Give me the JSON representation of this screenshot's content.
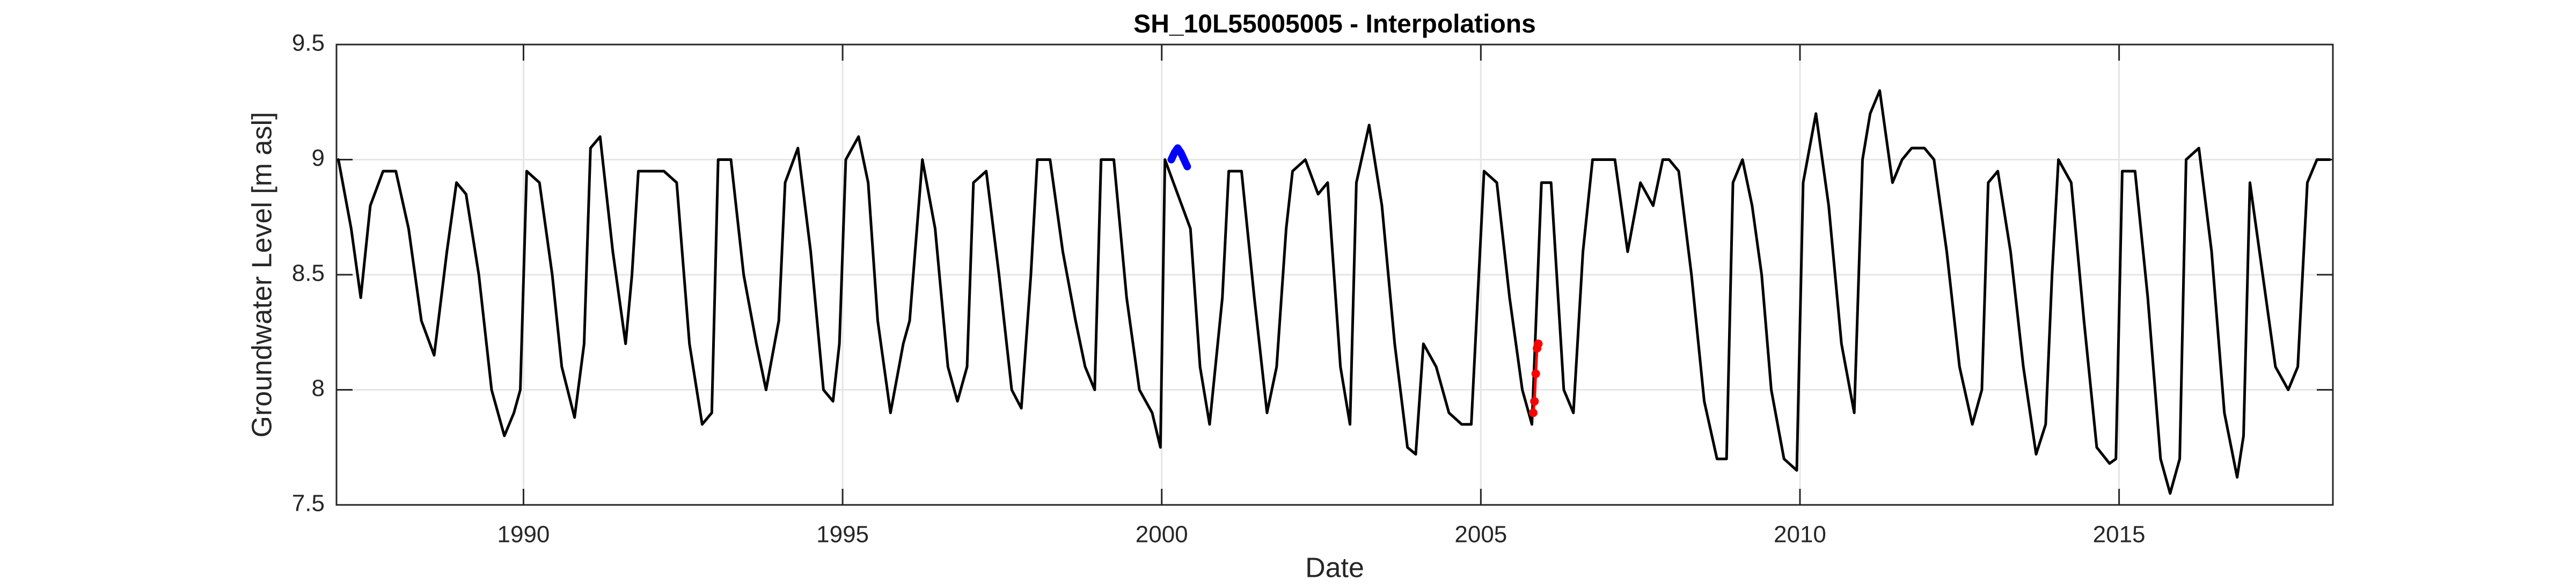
{
  "chart_data": {
    "type": "line",
    "title": "SH_10L55005005 - Interpolations",
    "xlabel": "Date",
    "ylabel": "Groundwater Level [m asl]",
    "xlim": [
      1987.07,
      2018.35
    ],
    "ylim": [
      7.5,
      9.5
    ],
    "xticks": [
      1990,
      1995,
      2000,
      2005,
      2010,
      2015
    ],
    "yticks": [
      7.5,
      8,
      8.5,
      9,
      9.5
    ],
    "grid": true,
    "series": [
      {
        "color": "#000000",
        "x": [
          1987.1,
          1987.3,
          1987.45,
          1987.6,
          1987.8,
          1988.0,
          1988.2,
          1988.4,
          1988.6,
          1988.8,
          1988.95,
          1989.1,
          1989.3,
          1989.5,
          1989.7,
          1989.85,
          1989.95,
          1990.05,
          1990.25,
          1990.45,
          1990.6,
          1990.8,
          1990.95,
          1991.05,
          1991.2,
          1991.4,
          1991.6,
          1991.7,
          1991.8,
          1992.0,
          1992.2,
          1992.4,
          1992.6,
          1992.8,
          1992.95,
          1993.05,
          1993.25,
          1993.45,
          1993.65,
          1993.8,
          1994.0,
          1994.1,
          1994.3,
          1994.5,
          1994.7,
          1994.85,
          1994.95,
          1995.05,
          1995.25,
          1995.4,
          1995.55,
          1995.75,
          1995.95,
          1996.05,
          1996.25,
          1996.45,
          1996.65,
          1996.8,
          1996.95,
          1997.05,
          1997.25,
          1997.45,
          1997.65,
          1997.8,
          1997.95,
          1998.05,
          1998.25,
          1998.45,
          1998.65,
          1998.8,
          1998.95,
          1999.05,
          1999.25,
          1999.45,
          1999.65,
          1999.85,
          1999.98,
          2000.05,
          2000.45,
          2000.6,
          2000.75,
          2000.95,
          2001.05,
          2001.25,
          2001.45,
          2001.65,
          2001.8,
          2001.95,
          2002.05,
          2002.25,
          2002.45,
          2002.6,
          2002.8,
          2002.95,
          2003.05,
          2003.25,
          2003.45,
          2003.65,
          2003.85,
          2003.98,
          2004.1,
          2004.3,
          2004.5,
          2004.7,
          2004.85,
          2004.95,
          2005.05,
          2005.25,
          2005.45,
          2005.65,
          2005.8,
          2005.95,
          2006.1,
          2006.3,
          2006.45,
          2006.6,
          2006.75,
          2006.95,
          2007.1,
          2007.3,
          2007.5,
          2007.7,
          2007.85,
          2007.95,
          2008.1,
          2008.3,
          2008.5,
          2008.7,
          2008.85,
          2008.95,
          2009.1,
          2009.25,
          2009.4,
          2009.55,
          2009.75,
          2009.95,
          2010.05,
          2010.25,
          2010.45,
          2010.65,
          2010.85,
          2010.98,
          2011.1,
          2011.25,
          2011.45,
          2011.6,
          2011.75,
          2011.95,
          2012.1,
          2012.3,
          2012.5,
          2012.7,
          2012.85,
          2012.95,
          2013.1,
          2013.3,
          2013.5,
          2013.7,
          2013.85,
          2013.95,
          2014.05,
          2014.25,
          2014.45,
          2014.65,
          2014.85,
          2014.95,
          2015.05,
          2015.25,
          2015.45,
          2015.65,
          2015.8,
          2015.95,
          2016.05,
          2016.25,
          2016.45,
          2016.65,
          2016.85,
          2016.95,
          2017.05,
          2017.25,
          2017.45,
          2017.65,
          2017.8,
          2017.95,
          2018.1,
          2018.3
        ],
        "values": [
          9.0,
          8.7,
          8.4,
          8.8,
          8.95,
          8.95,
          8.7,
          8.3,
          8.15,
          8.6,
          8.9,
          8.85,
          8.5,
          8.0,
          7.8,
          7.9,
          8.0,
          8.95,
          8.9,
          8.5,
          8.1,
          7.88,
          8.2,
          9.05,
          9.1,
          8.6,
          8.2,
          8.5,
          8.95,
          8.95,
          8.95,
          8.9,
          8.2,
          7.85,
          7.9,
          9.0,
          9.0,
          8.5,
          8.2,
          8.0,
          8.3,
          8.9,
          9.05,
          8.6,
          8.0,
          7.95,
          8.2,
          9.0,
          9.1,
          8.9,
          8.3,
          7.9,
          8.2,
          8.3,
          9.0,
          8.7,
          8.1,
          7.95,
          8.1,
          8.9,
          8.95,
          8.5,
          8.0,
          7.92,
          8.5,
          9.0,
          9.0,
          8.6,
          8.3,
          8.1,
          8.0,
          9.0,
          9.0,
          8.4,
          8.0,
          7.9,
          7.75,
          9.0,
          8.7,
          8.1,
          7.85,
          8.4,
          8.95,
          8.95,
          8.4,
          7.9,
          8.1,
          8.7,
          8.95,
          9.0,
          8.85,
          8.9,
          8.1,
          7.85,
          8.9,
          9.15,
          8.8,
          8.2,
          7.75,
          7.72,
          8.2,
          8.1,
          7.9,
          7.85,
          7.85,
          8.4,
          8.95,
          8.9,
          8.4,
          8.0,
          7.85,
          8.9,
          8.9,
          8.0,
          7.9,
          8.6,
          9.0,
          9.0,
          9.0,
          8.6,
          8.9,
          8.8,
          9.0,
          9.0,
          8.95,
          8.5,
          7.95,
          7.7,
          7.7,
          8.9,
          9.0,
          8.8,
          8.5,
          8.0,
          7.7,
          7.65,
          8.9,
          9.2,
          8.8,
          8.2,
          7.9,
          9.0,
          9.2,
          9.3,
          8.9,
          9.0,
          9.05,
          9.05,
          9.0,
          8.6,
          8.1,
          7.85,
          8.0,
          8.9,
          8.95,
          8.6,
          8.1,
          7.72,
          7.85,
          8.5,
          9.0,
          8.9,
          8.3,
          7.75,
          7.68,
          7.7,
          8.95,
          8.95,
          8.4,
          7.7,
          7.55,
          7.7,
          9.0,
          9.05,
          8.6,
          7.9,
          7.62,
          7.8,
          8.9,
          8.5,
          8.1,
          8.0,
          8.1,
          8.9,
          9.0,
          9.0
        ]
      },
      {
        "color": "#0000ff",
        "x": [
          2000.15,
          2000.2,
          2000.25,
          2000.3,
          2000.35,
          2000.4
        ],
        "values": [
          9.0,
          9.03,
          9.05,
          9.03,
          9.0,
          8.97
        ]
      },
      {
        "color": "#ff0000",
        "marker": "o",
        "x": [
          2005.82,
          2005.84,
          2005.86,
          2005.88,
          2005.9
        ],
        "values": [
          7.9,
          7.95,
          8.07,
          8.18,
          8.2
        ]
      }
    ]
  }
}
